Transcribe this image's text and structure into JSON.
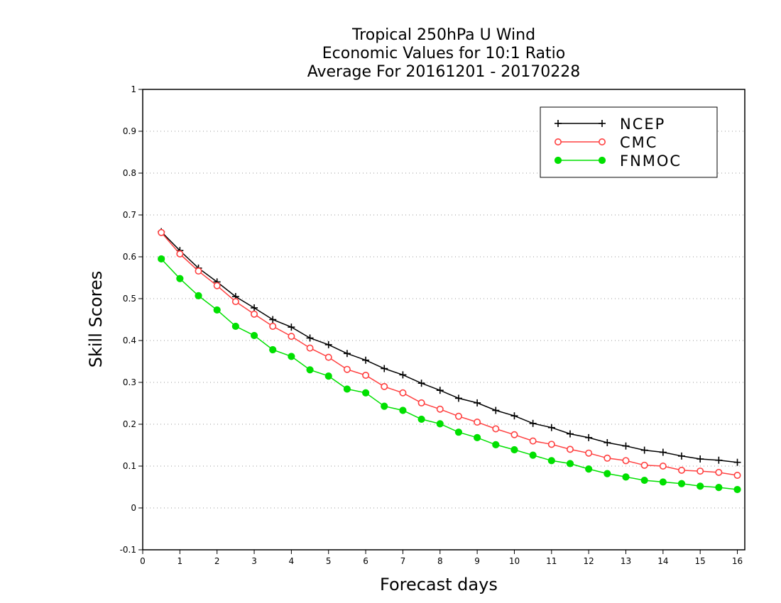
{
  "chart_data": {
    "type": "line",
    "title_lines": [
      "Tropical 250hPa U Wind",
      "Economic Values for 10:1 Ratio",
      "Average For 20161201 - 20170228"
    ],
    "xlabel": "Forecast days",
    "ylabel": "Skill Scores",
    "xlim": [
      0,
      16.2
    ],
    "ylim": [
      -0.1,
      1
    ],
    "x_ticks": [
      0,
      1,
      2,
      3,
      4,
      5,
      6,
      7,
      8,
      9,
      10,
      11,
      12,
      13,
      14,
      15,
      16
    ],
    "y_ticks": [
      -0.1,
      0,
      0.1,
      0.2,
      0.3,
      0.4,
      0.5,
      0.6,
      0.7,
      0.8,
      0.9,
      1
    ],
    "y_tick_labels": [
      "-0.1",
      "0",
      "0.1",
      "0.2",
      "0.3",
      "0.4",
      "0.5",
      "0.6",
      "0.7",
      "0.8",
      "0.9",
      "1"
    ],
    "grid": "dotted horizontal",
    "legend_position": "top-right",
    "x": [
      0.5,
      1,
      1.5,
      2,
      2.5,
      3,
      3.5,
      4,
      4.5,
      5,
      5.5,
      6,
      6.5,
      7,
      7.5,
      8,
      8.5,
      9,
      9.5,
      10,
      10.5,
      11,
      11.5,
      12,
      12.5,
      13,
      13.5,
      14,
      14.5,
      15,
      15.5,
      16
    ],
    "series": [
      {
        "name": "NCEP",
        "color": "#000000",
        "marker": "plus",
        "values": [
          0.66,
          0.615,
          0.573,
          0.54,
          0.505,
          0.478,
          0.45,
          0.432,
          0.406,
          0.39,
          0.369,
          0.353,
          0.333,
          0.318,
          0.298,
          0.281,
          0.262,
          0.251,
          0.233,
          0.22,
          0.202,
          0.192,
          0.177,
          0.168,
          0.156,
          0.148,
          0.138,
          0.133,
          0.124,
          0.117,
          0.114,
          0.109
        ]
      },
      {
        "name": "CMC",
        "color": "#ff4040",
        "marker": "open-circle",
        "values": [
          0.658,
          0.607,
          0.566,
          0.531,
          0.493,
          0.463,
          0.434,
          0.41,
          0.382,
          0.36,
          0.331,
          0.317,
          0.29,
          0.275,
          0.251,
          0.236,
          0.219,
          0.205,
          0.189,
          0.175,
          0.16,
          0.152,
          0.14,
          0.131,
          0.119,
          0.113,
          0.102,
          0.1,
          0.09,
          0.088,
          0.085,
          0.078
        ]
      },
      {
        "name": "FNMOC",
        "color": "#00e000",
        "marker": "filled-circle",
        "values": [
          0.595,
          0.548,
          0.507,
          0.473,
          0.434,
          0.412,
          0.378,
          0.362,
          0.33,
          0.315,
          0.284,
          0.275,
          0.243,
          0.233,
          0.212,
          0.201,
          0.181,
          0.168,
          0.151,
          0.139,
          0.126,
          0.113,
          0.106,
          0.093,
          0.082,
          0.074,
          0.066,
          0.062,
          0.058,
          0.052,
          0.049,
          0.044
        ]
      }
    ]
  }
}
